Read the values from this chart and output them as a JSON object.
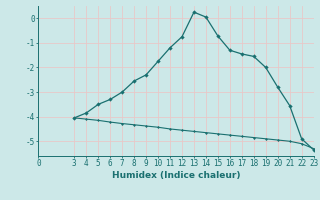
{
  "xlabel": "Humidex (Indice chaleur)",
  "bg_color": "#cce8e8",
  "grid_color": "#e8c8c8",
  "line_color": "#1a7070",
  "upper_x": [
    3,
    4,
    5,
    6,
    7,
    8,
    9,
    10,
    11,
    12,
    13,
    14,
    15,
    16,
    17,
    18,
    19,
    20,
    21,
    22,
    23
  ],
  "upper_y": [
    -4.05,
    -3.85,
    -3.5,
    -3.3,
    -3.0,
    -2.55,
    -2.3,
    -1.75,
    -1.2,
    -0.75,
    0.25,
    0.05,
    -0.72,
    -1.3,
    -1.45,
    -1.55,
    -2.0,
    -2.8,
    -3.55,
    -4.9,
    -5.35
  ],
  "lower_x": [
    3,
    4,
    5,
    6,
    7,
    8,
    9,
    10,
    11,
    12,
    13,
    14,
    15,
    16,
    17,
    18,
    19,
    20,
    21,
    22,
    23
  ],
  "lower_y": [
    -4.05,
    -4.1,
    -4.15,
    -4.22,
    -4.28,
    -4.33,
    -4.38,
    -4.43,
    -4.5,
    -4.55,
    -4.6,
    -4.65,
    -4.7,
    -4.75,
    -4.8,
    -4.85,
    -4.9,
    -4.95,
    -5.0,
    -5.1,
    -5.3
  ],
  "xlim": [
    0,
    23
  ],
  "ylim": [
    -5.6,
    0.5
  ],
  "xticks": [
    0,
    3,
    4,
    5,
    6,
    7,
    8,
    9,
    10,
    11,
    12,
    13,
    14,
    15,
    16,
    17,
    18,
    19,
    20,
    21,
    22,
    23
  ],
  "yticks": [
    0,
    -1,
    -2,
    -3,
    -4,
    -5
  ],
  "xlabel_fontsize": 6.5,
  "tick_fontsize": 5.5
}
